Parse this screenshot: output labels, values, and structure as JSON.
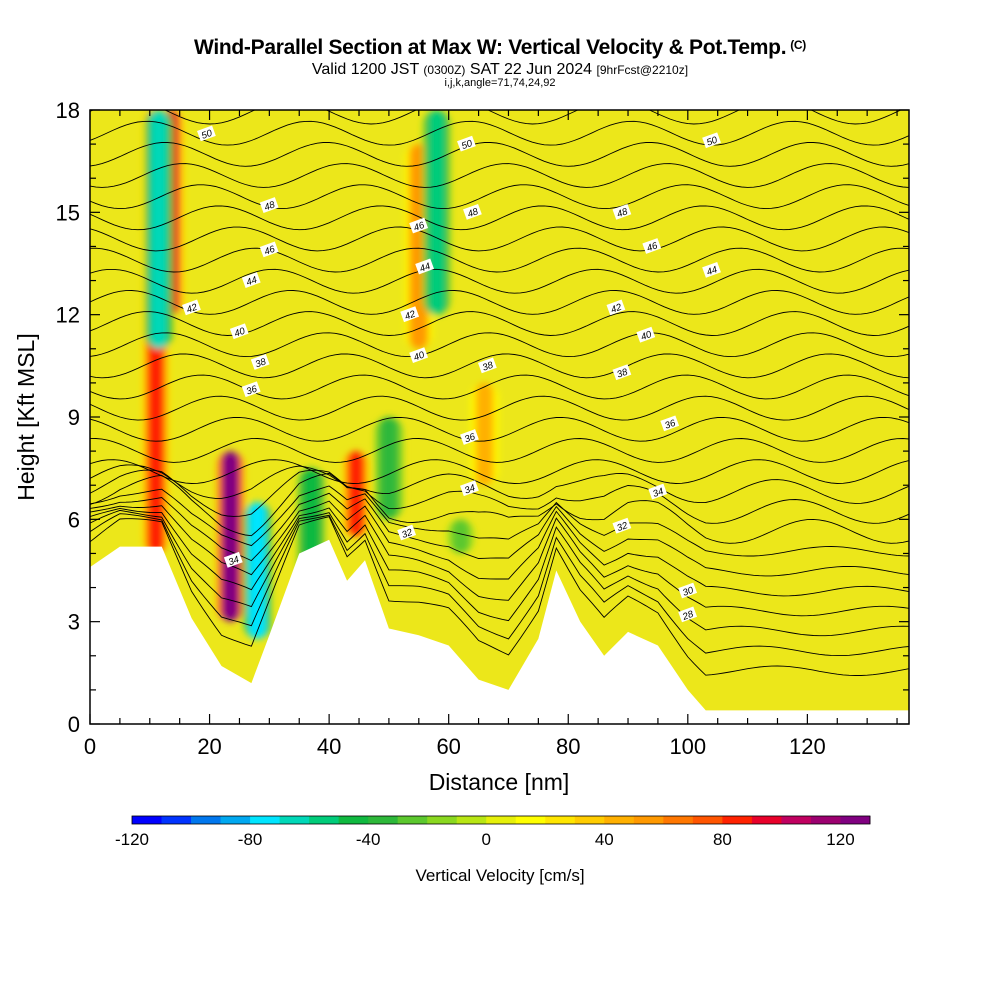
{
  "title": {
    "main": "Wind-Parallel Section at Max W: Vertical Velocity & Pot.Temp.",
    "copyright": "(C)",
    "valid_prefix": "Valid 1200 JST",
    "valid_utc": "(0300Z)",
    "valid_date": "SAT 22 Jun 2024",
    "forecast": "[9hrFcst@2210z]",
    "params": "i,j,k,angle=71,74,24,92"
  },
  "chart_data": {
    "type": "heatmap",
    "xlabel": "Distance [nm]",
    "ylabel": "Height [Kft MSL]",
    "xlim": [
      0,
      137
    ],
    "ylim": [
      0,
      18
    ],
    "x_ticks": [
      "0",
      "20",
      "40",
      "60",
      "80",
      "100",
      "120"
    ],
    "y_ticks": [
      "0",
      "3",
      "6",
      "9",
      "12",
      "15",
      "18"
    ],
    "colorbar": {
      "label": "Vertical Velocity [cm/s]",
      "range": [
        -120,
        130
      ],
      "step": 10,
      "tick_labels": [
        "-120",
        "-80",
        "-40",
        "0",
        "40",
        "80",
        "120"
      ],
      "colors": [
        "#0000ff",
        "#0033ff",
        "#0077ee",
        "#00a8f0",
        "#00e5ff",
        "#00d8b8",
        "#00cc7a",
        "#10b940",
        "#2db83a",
        "#5cc82e",
        "#8ad820",
        "#b8e614",
        "#e6f00a",
        "#ffff00",
        "#ffe600",
        "#ffcc00",
        "#ffb000",
        "#ff9900",
        "#ff7700",
        "#ff5500",
        "#ff2200",
        "#e8002a",
        "#c00060",
        "#9c0070",
        "#800080"
      ]
    },
    "updrafts": [
      {
        "x": 11,
        "z_bottom": 5,
        "z_top": 18,
        "w": 80
      },
      {
        "x": 13.5,
        "z_bottom": 12,
        "z_top": 18,
        "w": 90
      },
      {
        "x": 23.5,
        "z_bottom": 3,
        "z_top": 8,
        "w": 125
      },
      {
        "x": 44.5,
        "z_bottom": 5.5,
        "z_top": 8,
        "w": 80
      },
      {
        "x": 55,
        "z_bottom": 11,
        "z_top": 17,
        "w": 50
      },
      {
        "x": 66,
        "z_bottom": 7,
        "z_top": 10,
        "w": 40
      }
    ],
    "downdrafts": [
      {
        "x": 11.5,
        "z_bottom": 11,
        "z_top": 18,
        "w": -70
      },
      {
        "x": 28,
        "z_bottom": 2.5,
        "z_top": 6.5,
        "w": -80
      },
      {
        "x": 37,
        "z_bottom": 4,
        "z_top": 7.5,
        "w": -50
      },
      {
        "x": 58,
        "z_bottom": 12,
        "z_top": 18,
        "w": -60
      },
      {
        "x": 50,
        "z_bottom": 6,
        "z_top": 9,
        "w": -40
      },
      {
        "x": 62,
        "z_bottom": 5,
        "z_top": 6,
        "w": -30
      }
    ],
    "terrain_kft": [
      [
        0,
        4.6
      ],
      [
        5,
        5.2
      ],
      [
        12,
        5.2
      ],
      [
        17,
        3.1
      ],
      [
        22,
        1.7
      ],
      [
        27,
        1.2
      ],
      [
        30,
        2.6
      ],
      [
        35,
        5
      ],
      [
        40,
        5.4
      ],
      [
        43,
        4.2
      ],
      [
        46,
        4.8
      ],
      [
        50,
        2.8
      ],
      [
        55,
        2.6
      ],
      [
        60,
        2.3
      ],
      [
        65,
        1.3
      ],
      [
        70,
        1
      ],
      [
        75,
        2.5
      ],
      [
        78,
        4.5
      ],
      [
        82,
        3
      ],
      [
        86,
        2
      ],
      [
        90,
        2.7
      ],
      [
        95,
        2.3
      ],
      [
        100,
        1
      ],
      [
        103,
        0.4
      ],
      [
        137,
        0.4
      ]
    ],
    "theta_contours": {
      "label": "Pot.Temp.",
      "labels": [
        {
          "x": 24,
          "y": 4.8,
          "text": "34"
        },
        {
          "x": 27,
          "y": 9.8,
          "text": "36"
        },
        {
          "x": 28.5,
          "y": 10.6,
          "text": "38"
        },
        {
          "x": 25,
          "y": 11.5,
          "text": "40"
        },
        {
          "x": 17,
          "y": 12.2,
          "text": "42"
        },
        {
          "x": 27,
          "y": 13.0,
          "text": "44"
        },
        {
          "x": 30,
          "y": 13.9,
          "text": "46"
        },
        {
          "x": 30,
          "y": 15.2,
          "text": "48"
        },
        {
          "x": 19.5,
          "y": 17.3,
          "text": "50"
        },
        {
          "x": 53,
          "y": 5.6,
          "text": "32"
        },
        {
          "x": 63.5,
          "y": 6.9,
          "text": "34"
        },
        {
          "x": 63.5,
          "y": 8.4,
          "text": "36"
        },
        {
          "x": 66.5,
          "y": 10.5,
          "text": "38"
        },
        {
          "x": 55,
          "y": 10.8,
          "text": "40"
        },
        {
          "x": 53.5,
          "y": 12.0,
          "text": "42"
        },
        {
          "x": 56,
          "y": 13.4,
          "text": "44"
        },
        {
          "x": 55,
          "y": 14.6,
          "text": "46"
        },
        {
          "x": 64,
          "y": 15.0,
          "text": "48"
        },
        {
          "x": 63,
          "y": 17.0,
          "text": "50"
        },
        {
          "x": 89,
          "y": 5.8,
          "text": "32"
        },
        {
          "x": 95,
          "y": 6.8,
          "text": "34"
        },
        {
          "x": 97,
          "y": 8.8,
          "text": "36"
        },
        {
          "x": 89,
          "y": 10.3,
          "text": "38"
        },
        {
          "x": 93,
          "y": 11.4,
          "text": "40"
        },
        {
          "x": 88,
          "y": 12.2,
          "text": "42"
        },
        {
          "x": 104,
          "y": 13.3,
          "text": "44"
        },
        {
          "x": 94,
          "y": 14.0,
          "text": "46"
        },
        {
          "x": 89,
          "y": 15.0,
          "text": "48"
        },
        {
          "x": 104,
          "y": 17.1,
          "text": "50"
        },
        {
          "x": 100,
          "y": 3.9,
          "text": "30"
        },
        {
          "x": 100,
          "y": 3.2,
          "text": "28"
        }
      ]
    }
  }
}
